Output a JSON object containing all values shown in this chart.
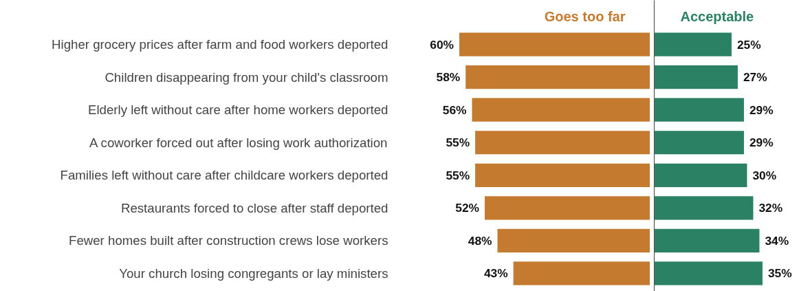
{
  "chart_data": [
    {
      "type": "bar",
      "orientation": "horizontal",
      "tick_labels": "y",
      "grid": false,
      "categories": [
        "Higher grocery prices after farm and food workers deported",
        "Children disappearing from your child's classroom",
        "Elderly left without care after home workers deported",
        "A coworker forced out after losing work authorization",
        "Families left without care after childcare workers deported",
        "Restaurants forced to close after staff deported",
        "Fewer homes built after construction crews lose workers",
        "Your church losing congregants or lay ministers"
      ],
      "series": [
        {
          "name": "Goes too far",
          "color": "#c47a2f",
          "values": [
            60,
            58,
            56,
            55,
            55,
            52,
            48,
            43
          ],
          "value_labels": [
            "60%",
            "58%",
            "56%",
            "55%",
            "55%",
            "52%",
            "48%",
            "43%"
          ]
        }
      ]
    },
    {
      "type": "bar",
      "orientation": "horizontal",
      "tick_labels": false,
      "grid": false,
      "categories": [
        null,
        null,
        null,
        null,
        null,
        null,
        null,
        null
      ],
      "series": [
        {
          "name": "Acceptable",
          "color": "#2a8163",
          "values": [
            25,
            27,
            29,
            29,
            30,
            32,
            34,
            35
          ],
          "value_labels": [
            "25%",
            "27%",
            "29%",
            "29%",
            "30%",
            "32%",
            "34%",
            "35%"
          ]
        }
      ]
    }
  ]
}
